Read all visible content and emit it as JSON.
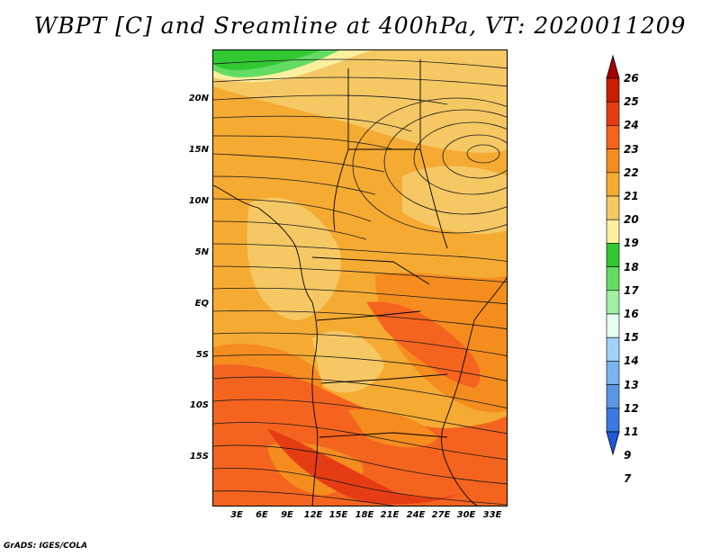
{
  "title": "WBPT [C] and Sreamline at 400hPa, VT: 2020011209",
  "credit": "GrADS: IGES/COLA",
  "map": {
    "lat_ticks": [
      "20N",
      "15N",
      "10N",
      "5N",
      "EQ",
      "5S",
      "10S",
      "15S"
    ],
    "lon_ticks": [
      "3E",
      "6E",
      "9E",
      "12E",
      "15E",
      "18E",
      "21E",
      "24E",
      "27E",
      "30E",
      "33E"
    ]
  },
  "colorbar": {
    "labels": [
      "26",
      "25",
      "24",
      "23",
      "22",
      "21",
      "20",
      "19",
      "18",
      "17",
      "16",
      "15",
      "14",
      "13",
      "12",
      "11",
      "9",
      "7"
    ],
    "colors": [
      "#a50000",
      "#c81e00",
      "#e63c14",
      "#f5641e",
      "#f58c1e",
      "#f5aa32",
      "#f5c864",
      "#faf0a0",
      "#32c832",
      "#64dc64",
      "#a0f0a0",
      "#e6fff0",
      "#a0d2fa",
      "#78b4f0",
      "#5a96e6",
      "#3c78e1",
      "#1e5ad7"
    ]
  }
}
